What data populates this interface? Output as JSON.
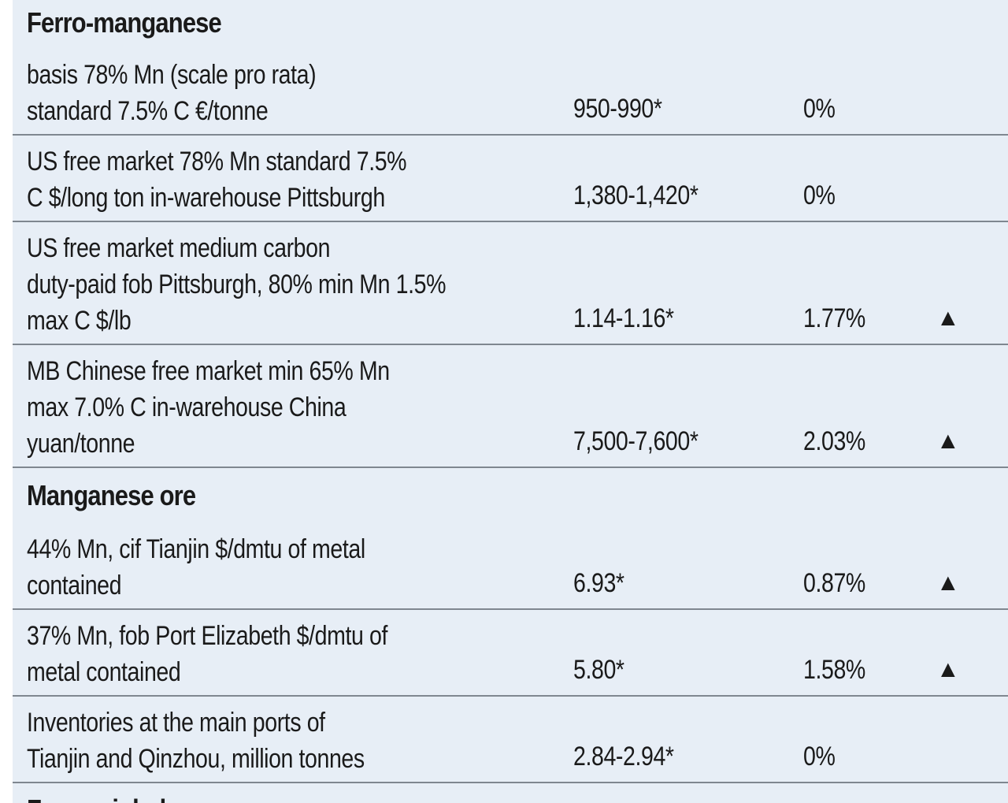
{
  "sections": [
    {
      "heading": "Ferro-manganese",
      "rows": [
        {
          "description": [
            "basis 78% Mn (scale pro rata)",
            "standard 7.5% C €/tonne"
          ],
          "price": "950-990*",
          "change": "0%",
          "direction": ""
        },
        {
          "description": [
            "US free market 78% Mn standard 7.5%",
            "C $/long ton in-warehouse Pittsburgh"
          ],
          "price": "1,380-1,420*",
          "change": "0%",
          "direction": ""
        },
        {
          "description": [
            "US free market medium carbon",
            "duty-paid fob Pittsburgh, 80% min Mn 1.5%",
            "max C $/lb"
          ],
          "price": "1.14-1.16*",
          "change": "1.77%",
          "direction": "▲"
        },
        {
          "description": [
            "MB Chinese free market min 65% Mn",
            "max 7.0% C in-warehouse China",
            "yuan/tonne"
          ],
          "price": "7,500-7,600*",
          "change": "2.03%",
          "direction": "▲"
        }
      ]
    },
    {
      "heading": "Manganese ore",
      "rows": [
        {
          "description": [
            "44% Mn, cif Tianjin $/dmtu of metal",
            "contained"
          ],
          "price": "6.93*",
          "change": "0.87%",
          "direction": "▲"
        },
        {
          "description": [
            "37% Mn, fob Port Elizabeth $/dmtu of",
            "metal contained"
          ],
          "price": "5.80*",
          "change": "1.58%",
          "direction": "▲"
        },
        {
          "description": [
            "Inventories at the main ports of",
            "Tianjin and Qinzhou, million tonnes"
          ],
          "price": "2.84-2.94*",
          "change": "0%",
          "direction": ""
        }
      ]
    }
  ],
  "cut_off_heading": "Ferro-nickel"
}
